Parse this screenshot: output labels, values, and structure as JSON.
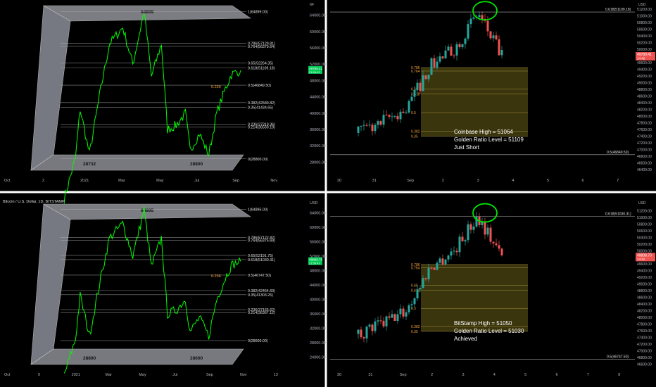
{
  "palette": {
    "background": "#000000",
    "up": "#26a69a",
    "down": "#ef5350",
    "line": "#00ff00",
    "fib_line": "#b2b2b2",
    "fib_orange": "#f2a33a",
    "zone_fill": "#4a4210",
    "axis_text": "#b2b5be",
    "divider": "#ffffff",
    "price_badge": "#ef5350",
    "price_badge_green": "#00c853",
    "circle": "#00e600"
  },
  "panels": [
    {
      "id": "top-left",
      "title": "",
      "top_label": "64899",
      "bottom_labels": [
        "28732",
        "28800"
      ],
      "price_label": "49789.41",
      "price_label_sub": "21:56:43",
      "level_236_label": "0.236",
      "x_labels": [
        "Oct",
        "2",
        "2021",
        "Mar",
        "May",
        "Jul",
        "Sep",
        "Nov"
      ],
      "y_labels": [
        "64000.00",
        "60000.00",
        "56000.00",
        "52000.00",
        "48000.00",
        "44000.00",
        "40000.00",
        "36000.00",
        "32000.00",
        "28000.00"
      ],
      "y_header": "6F",
      "fib_labels": [
        "1(64899.00)",
        "0.786(57129.81)",
        "0.764(56379.64)",
        "0.65(52264.35)",
        "0.618(51109.18)",
        "0.5(46849.50)",
        "0.382(42589.82)",
        "0.35(41434.65)",
        "0.236(37319.36)",
        "0.214(36569.19)",
        "0(28800.00)"
      ],
      "chart_data": {
        "type": "line",
        "title": "",
        "xlabel": "",
        "ylabel": "",
        "ylim": [
          26000,
          66000
        ],
        "x": [
          "2020-12-15",
          "2021-01-01",
          "2021-01-08",
          "2021-01-22",
          "2021-02-08",
          "2021-02-21",
          "2021-03-13",
          "2021-03-28",
          "2021-04-14",
          "2021-04-25",
          "2021-05-10",
          "2021-05-19",
          "2021-06-01",
          "2021-06-15",
          "2021-06-22",
          "2021-07-06",
          "2021-07-20",
          "2021-08-01",
          "2021-08-14",
          "2021-08-23",
          "2021-09-06"
        ],
        "series": [
          {
            "values": [
              19000,
              29000,
              41000,
              30000,
              46000,
              57000,
              61000,
              52000,
              64899,
              49000,
              57000,
              36000,
              37000,
              40000,
              31000,
              35000,
              29800,
              40000,
              46000,
              49500,
              50500
            ]
          }
        ]
      }
    },
    {
      "id": "top-right",
      "title": "",
      "price_label": "49789.41",
      "price_label_sub": "14:42",
      "y_header": "USD",
      "x_labels": [
        "30",
        "31",
        "Sep",
        "2",
        "3",
        "4",
        "5",
        "6",
        "7"
      ],
      "y_labels": [
        "51200.00",
        "51000.00",
        "50800.00",
        "50600.00",
        "50400.00",
        "50200.00",
        "50000.00",
        "49800.00",
        "49600.00",
        "49400.00",
        "49200.00",
        "49000.00",
        "48800.00",
        "48600.00",
        "48400.00",
        "48200.00",
        "48000.00",
        "47800.00",
        "47600.00",
        "47400.00",
        "47200.00",
        "47000.00",
        "46800.00",
        "46600.00",
        "46400.00"
      ],
      "fib_618": "0.618(51109.18)",
      "fib_5": "0.5(46849.50)",
      "small_fib_labels": [
        "0.786",
        "0.764",
        "0.65",
        "0.618",
        "0.5",
        "0.382",
        "0.35"
      ],
      "annotation": [
        "Coinbase High = 51064",
        "Golden Ratio Level = 51109",
        "Just Short"
      ],
      "chart_data": {
        "type": "candlestick",
        "x": [
          "Aug 30",
          "Aug 31",
          "Sep 1",
          "Sep 2",
          "Sep 3",
          "Sep 3 PM",
          "Sep 4"
        ],
        "ylim": [
          46300,
          51300
        ],
        "series": [
          {
            "name": "",
            "values": [
              47500,
              47800,
              48200,
              49500,
              50000,
              51064,
              49789
            ]
          }
        ]
      }
    },
    {
      "id": "bottom-left",
      "title": "Bitcoin / U.S. Dollar, 1D, BITSTAMP",
      "top_label": "64895",
      "bottom_labels": [
        "28800",
        "28600"
      ],
      "price_label": "49808.70",
      "price_label_sub": "21:56:43",
      "level_236_label": "0.236",
      "x_labels": [
        "Oct",
        "9",
        "2021",
        "Mar",
        "May",
        "Jul",
        "Sep",
        "Nov",
        "13"
      ],
      "y_labels": [
        "64000.00",
        "60000.00",
        "56000.00",
        "52000.00",
        "48000.00",
        "44000.00",
        "40000.00",
        "36000.00",
        "32000.00",
        "28000.00",
        "24000.00"
      ],
      "y_header": "USD",
      "fib_labels": [
        "1(64895.00)",
        "0.786(57122.82)",
        "0.764(56375.69)",
        "0.65(52191.75)",
        "0.618(51030.31)",
        "0.5(46747.50)",
        "0.382(42464.69)",
        "0.35(41303.25)",
        "0.236(37165.62)",
        "0.214(36367.12)",
        "0(28600.00)"
      ],
      "chart_data": {
        "type": "line",
        "title": "",
        "xlabel": "",
        "ylabel": "",
        "ylim": [
          22000,
          66000
        ],
        "x": [
          "2020-12-15",
          "2021-01-01",
          "2021-01-08",
          "2021-01-22",
          "2021-02-08",
          "2021-02-21",
          "2021-03-13",
          "2021-03-28",
          "2021-04-14",
          "2021-04-25",
          "2021-05-10",
          "2021-05-19",
          "2021-06-01",
          "2021-06-15",
          "2021-06-22",
          "2021-07-06",
          "2021-07-20",
          "2021-08-01",
          "2021-08-14",
          "2021-08-23",
          "2021-09-06"
        ],
        "series": [
          {
            "values": [
              19000,
              29000,
              41000,
              30000,
              46000,
              57000,
              61000,
              52000,
              64895,
              49000,
              57000,
              36000,
              37000,
              40000,
              31000,
              35000,
              29800,
              40000,
              46000,
              49500,
              50500
            ]
          }
        ]
      }
    },
    {
      "id": "bottom-right",
      "title": "",
      "price_label": "49808.70",
      "price_label_sub": "14:41",
      "y_header": "USD",
      "x_labels": [
        "30",
        "31",
        "Sep",
        "2",
        "3",
        "4",
        "5",
        "6",
        "7",
        "8"
      ],
      "y_labels": [
        "51200.00",
        "51000.00",
        "50800.00",
        "50600.00",
        "50400.00",
        "50200.00",
        "50000.00",
        "49800.00",
        "49600.00",
        "49400.00",
        "49200.00",
        "49000.00",
        "48800.00",
        "48600.00",
        "48400.00",
        "48200.00",
        "48000.00",
        "47800.00",
        "47600.00",
        "47400.00",
        "47200.00",
        "47000.00",
        "46800.00",
        "46600.00"
      ],
      "fib_618": "0.618(51030.31)",
      "fib_5": "0.5(46747.50)",
      "small_fib_labels": [
        "0.786",
        "0.764",
        "0.65",
        "0.618",
        "0.5",
        "0.382",
        "0.35"
      ],
      "annotation": [
        "BitStamp High = 51050",
        "Golden Ratio Level = 51030",
        "Achieved"
      ],
      "chart_data": {
        "type": "candlestick",
        "x": [
          "Aug 30",
          "Aug 31",
          "Sep 1",
          "Sep 2",
          "Sep 3",
          "Sep 3 PM",
          "Sep 4"
        ],
        "ylim": [
          46500,
          51400
        ],
        "series": [
          {
            "name": "",
            "values": [
              47500,
              47800,
              48200,
              49500,
              50000,
              51050,
              49808
            ]
          }
        ]
      }
    }
  ]
}
